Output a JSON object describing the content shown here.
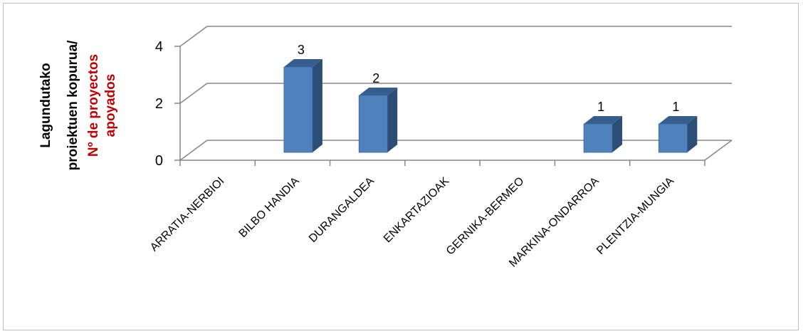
{
  "chart_data": {
    "type": "bar",
    "categories": [
      "ARRATIA-NERBIOI",
      "BILBO HANDIA",
      "DURANGALDEA",
      "ENKARTAZIOAK",
      "GERNIKA-BERMEO",
      "MARKINA-ONDARROA",
      "PLENTZIA-MUNGIA"
    ],
    "values": [
      0,
      3,
      2,
      0,
      0,
      1,
      1
    ],
    "data_labels": [
      "",
      "3",
      "2",
      "",
      "",
      "1",
      "1"
    ],
    "ylabel_line1": "Lagundutako",
    "ylabel_line2": "proiektuen kopurua/",
    "ylabel_line3": "Nº de proyectos",
    "ylabel_line4": "apoyados",
    "yticks": [
      "0",
      "2",
      "4"
    ],
    "ylim": [
      0,
      4
    ],
    "grid": true,
    "bar_color": "#4f81bd",
    "ylabel_accent_color": "#c00000"
  }
}
